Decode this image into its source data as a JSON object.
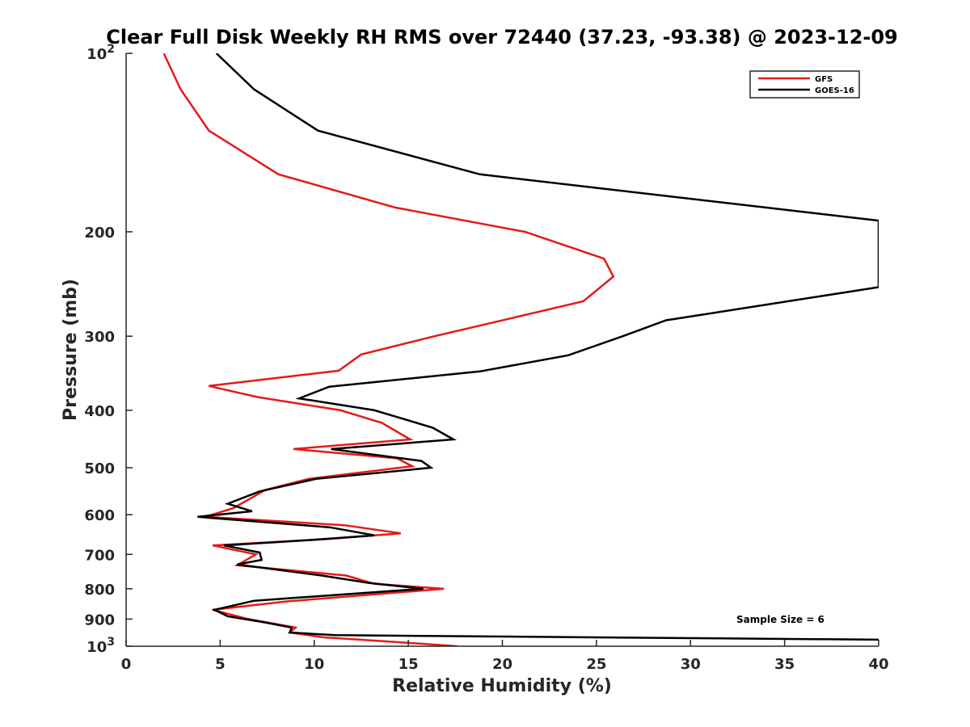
{
  "chart_data": {
    "type": "line",
    "title": "Clear Full Disk Weekly RH RMS over 72440 (37.23, -93.38) @ 2023-12-09",
    "xlabel": "Relative Humidity (%)",
    "ylabel": "Pressure (mb)",
    "xlim": [
      0,
      40
    ],
    "ylim": [
      100,
      1000
    ],
    "y_scale": "log",
    "y_reversed": true,
    "grid": false,
    "x_ticks": [
      "0",
      "5",
      "10",
      "15",
      "20",
      "25",
      "30",
      "35",
      "40"
    ],
    "y_ticks": [
      {
        "value": 100,
        "base": "10",
        "exp": "2"
      },
      {
        "value": 200,
        "label": "200"
      },
      {
        "value": 300,
        "label": "300"
      },
      {
        "value": 400,
        "label": "400"
      },
      {
        "value": 500,
        "label": "500"
      },
      {
        "value": 600,
        "label": "600"
      },
      {
        "value": 700,
        "label": "700"
      },
      {
        "value": 800,
        "label": "800"
      },
      {
        "value": 900,
        "label": "900"
      },
      {
        "value": 1000,
        "base": "10",
        "exp": "3"
      }
    ],
    "legend_position": "top-right",
    "annotation": "Sample Size = 6",
    "series": [
      {
        "name": "GFS",
        "color": "#e41a1a",
        "points": [
          [
            2.0,
            100
          ],
          [
            2.9,
            115
          ],
          [
            4.4,
            135
          ],
          [
            8.1,
            160
          ],
          [
            14.3,
            182
          ],
          [
            21.2,
            200
          ],
          [
            25.4,
            222
          ],
          [
            25.9,
            238
          ],
          [
            24.3,
            262
          ],
          [
            16.4,
            300
          ],
          [
            12.5,
            322
          ],
          [
            11.3,
            343
          ],
          [
            4.4,
            364
          ],
          [
            7.0,
            380
          ],
          [
            11.4,
            400
          ],
          [
            13.6,
            420
          ],
          [
            15.1,
            448
          ],
          [
            8.9,
            465
          ],
          [
            14.4,
            482
          ],
          [
            15.2,
            497
          ],
          [
            9.7,
            522
          ],
          [
            7.4,
            545
          ],
          [
            5.7,
            585
          ],
          [
            4.2,
            605
          ],
          [
            11.6,
            625
          ],
          [
            14.6,
            645
          ],
          [
            10.6,
            660
          ],
          [
            4.6,
            676
          ],
          [
            6.9,
            700
          ],
          [
            5.9,
            730
          ],
          [
            11.7,
            760
          ],
          [
            13.2,
            785
          ],
          [
            16.9,
            800
          ],
          [
            8.6,
            840
          ],
          [
            6.0,
            858
          ],
          [
            4.6,
            868
          ],
          [
            6.5,
            900
          ],
          [
            9.0,
            930
          ],
          [
            8.7,
            948
          ],
          [
            10.5,
            966
          ],
          [
            14.0,
            982
          ],
          [
            17.6,
            1000
          ]
        ]
      },
      {
        "name": "GOES-16",
        "color": "#000000",
        "points": [
          [
            4.8,
            100
          ],
          [
            6.8,
            115
          ],
          [
            10.2,
            135
          ],
          [
            18.8,
            160
          ],
          [
            40.0,
            191.5
          ],
          [
            40.0,
            248
          ],
          [
            28.7,
            282
          ],
          [
            26.4,
            300
          ],
          [
            23.5,
            323
          ],
          [
            18.8,
            344
          ],
          [
            10.8,
            365
          ],
          [
            9.2,
            382
          ],
          [
            13.2,
            400
          ],
          [
            16.3,
            428
          ],
          [
            17.4,
            448
          ],
          [
            10.9,
            465
          ],
          [
            15.7,
            487
          ],
          [
            16.2,
            500
          ],
          [
            10.1,
            522
          ],
          [
            7.1,
            548
          ],
          [
            5.4,
            575
          ],
          [
            6.7,
            592
          ],
          [
            3.8,
            605
          ],
          [
            10.8,
            630
          ],
          [
            13.2,
            650
          ],
          [
            9.8,
            662
          ],
          [
            5.2,
            676
          ],
          [
            7.1,
            695
          ],
          [
            7.2,
            715
          ],
          [
            5.9,
            728
          ],
          [
            10.4,
            760
          ],
          [
            12.9,
            782
          ],
          [
            15.8,
            800
          ],
          [
            6.8,
            838
          ],
          [
            4.7,
            868
          ],
          [
            5.4,
            890
          ],
          [
            7.4,
            912
          ],
          [
            8.8,
            930
          ],
          [
            8.7,
            948
          ],
          [
            11.1,
            958
          ],
          [
            40.0,
            975
          ]
        ]
      }
    ]
  }
}
